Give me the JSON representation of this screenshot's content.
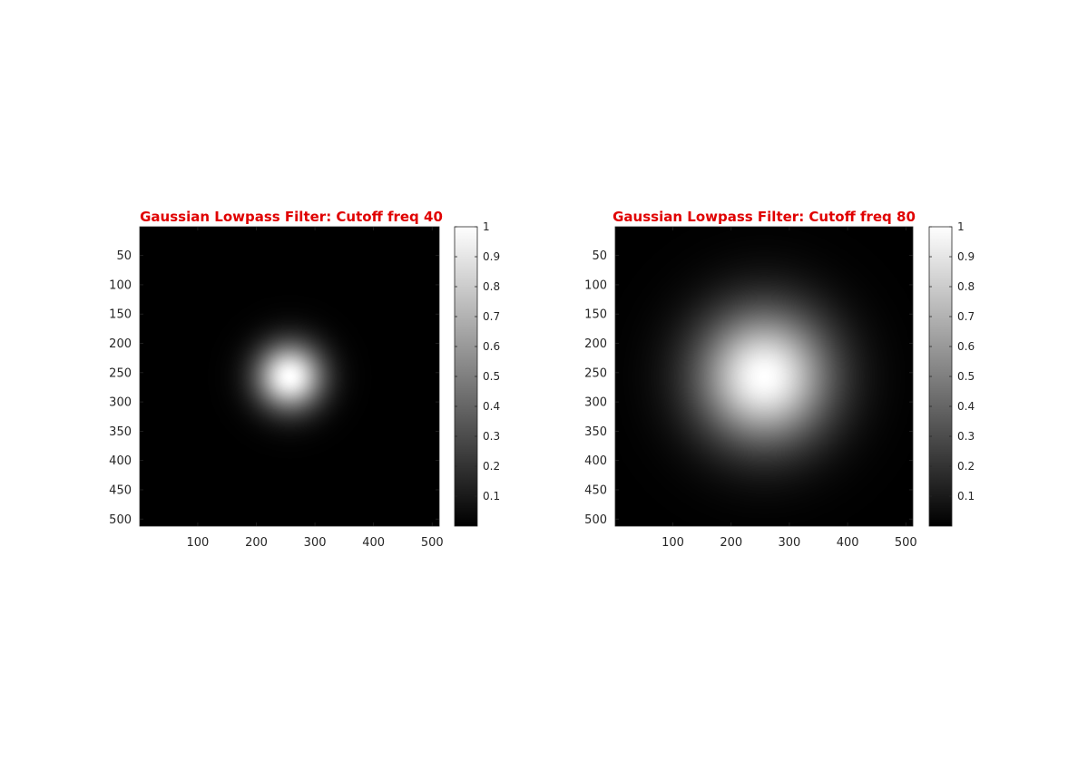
{
  "chart_data": [
    {
      "type": "heatmap",
      "title": "Gaussian Lowpass Filter: Cutoff freq 40",
      "title_color": "#e00000",
      "colormap": "gray",
      "image_size": [
        512,
        512
      ],
      "center": [
        257,
        257
      ],
      "cutoff_frequency": 40,
      "xlim": [
        1,
        512
      ],
      "ylim": [
        1,
        512
      ],
      "y_reversed": true,
      "xticks": [
        100,
        200,
        300,
        400,
        500
      ],
      "yticks": [
        50,
        100,
        150,
        200,
        250,
        300,
        350,
        400,
        450,
        500
      ],
      "colorbar": {
        "range": [
          0,
          1
        ],
        "ticks": [
          0.1,
          0.2,
          0.3,
          0.4,
          0.5,
          0.6,
          0.7,
          0.8,
          0.9,
          1
        ]
      }
    },
    {
      "type": "heatmap",
      "title": "Gaussian Lowpass Filter: Cutoff freq 80",
      "title_color": "#e00000",
      "colormap": "gray",
      "image_size": [
        512,
        512
      ],
      "center": [
        257,
        257
      ],
      "cutoff_frequency": 80,
      "xlim": [
        1,
        512
      ],
      "ylim": [
        1,
        512
      ],
      "y_reversed": true,
      "xticks": [
        100,
        200,
        300,
        400,
        500
      ],
      "yticks": [
        50,
        100,
        150,
        200,
        250,
        300,
        350,
        400,
        450,
        500
      ],
      "colorbar": {
        "range": [
          0,
          1
        ],
        "ticks": [
          0.1,
          0.2,
          0.3,
          0.4,
          0.5,
          0.6,
          0.7,
          0.8,
          0.9,
          1
        ]
      }
    }
  ]
}
